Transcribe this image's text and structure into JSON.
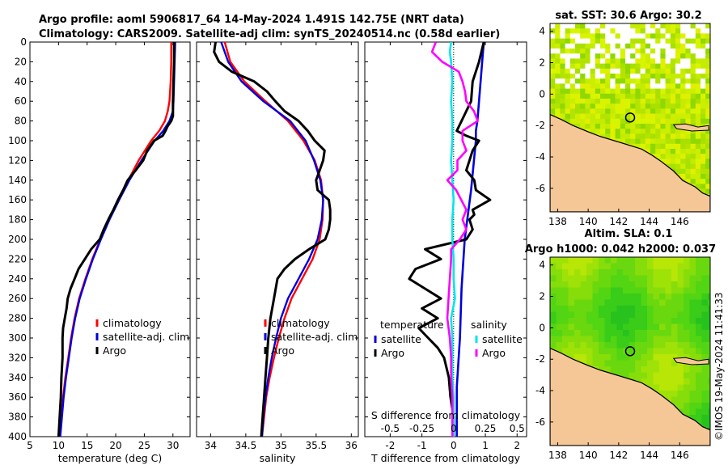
{
  "title": {
    "line1": "Argo profile: aoml 5906817_64 14-May-2024 1.491S 142.75E (NRT data)",
    "line2": "Climatology: CARS2009. Satellite-adj clim: synTS_20240514.nc (0.58d earlier)"
  },
  "watermark": "©IMOS 19-May-2024 11:41:33",
  "colors": {
    "climatology": "#ff0000",
    "satellite": "#0000dd",
    "argo": "#000000",
    "sal_diff": "#ff00ff",
    "sat_diff": "#00e5ee",
    "land": "#f6c796",
    "missing": "#ffffff"
  },
  "chart_data": [
    {
      "type": "line",
      "id": "temperature",
      "xlabel": "temperature (deg C)",
      "xlim": [
        5,
        33
      ],
      "xticks": [
        5,
        10,
        15,
        20,
        25,
        30
      ],
      "ylim": [
        0,
        400
      ],
      "yticks": [
        0,
        20,
        40,
        60,
        80,
        100,
        120,
        140,
        160,
        180,
        200,
        220,
        240,
        260,
        280,
        300,
        320,
        340,
        360,
        380,
        400
      ],
      "legend": [
        "climatology",
        "satellite-adj. clim",
        "Argo"
      ],
      "legend_position": "lower-right",
      "series": [
        {
          "name": "climatology",
          "depth": [
            0,
            20,
            40,
            60,
            70,
            80,
            90,
            100,
            120,
            140,
            160,
            180,
            200,
            220,
            240,
            260,
            280,
            300,
            320,
            340,
            360,
            380,
            400
          ],
          "values": [
            29.7,
            29.7,
            29.6,
            29.4,
            29.1,
            28.6,
            27.6,
            26.2,
            24.0,
            22.2,
            20.5,
            18.8,
            17.3,
            15.9,
            14.7,
            13.6,
            12.8,
            12.2,
            11.7,
            11.2,
            10.8,
            10.5,
            10.2
          ]
        },
        {
          "name": "satellite-adj. clim",
          "depth": [
            0,
            20,
            40,
            60,
            70,
            80,
            90,
            100,
            120,
            140,
            160,
            180,
            200,
            220,
            240,
            260,
            280,
            300,
            320,
            340,
            360,
            380,
            400
          ],
          "values": [
            30.4,
            30.3,
            30.2,
            30.1,
            30.0,
            29.4,
            28.3,
            26.8,
            24.5,
            22.4,
            20.6,
            18.9,
            17.4,
            16.0,
            14.8,
            13.7,
            12.9,
            12.3,
            11.8,
            11.3,
            10.9,
            10.6,
            10.3
          ]
        },
        {
          "name": "Argo",
          "depth": [
            0,
            10,
            20,
            40,
            60,
            75,
            80,
            85,
            90,
            95,
            100,
            110,
            120,
            130,
            140,
            150,
            160,
            170,
            180,
            190,
            200,
            210,
            220,
            230,
            240,
            250,
            260,
            270,
            280,
            290,
            300,
            320,
            340,
            360,
            380,
            400
          ],
          "values": [
            30.2,
            30.2,
            30.2,
            30.1,
            30.0,
            30.0,
            29.7,
            29.1,
            28.7,
            28.2,
            26.7,
            25.5,
            24.8,
            23.5,
            22.1,
            21.3,
            20.4,
            19.6,
            18.7,
            17.9,
            17.2,
            15.7,
            14.6,
            13.5,
            12.8,
            12.1,
            11.6,
            11.4,
            11.1,
            10.8,
            10.7,
            10.7,
            10.5,
            10.4,
            10.2,
            10.0
          ]
        }
      ]
    },
    {
      "type": "line",
      "id": "salinity",
      "xlabel": "salinity",
      "xlim": [
        33.8,
        36.1
      ],
      "xticks": [
        34,
        34.5,
        35,
        35.5,
        36
      ],
      "ylim": [
        0,
        400
      ],
      "legend": [
        "climatology",
        "satellite-adj. clim",
        "Argo"
      ],
      "legend_position": "lower-right",
      "series": [
        {
          "name": "climatology",
          "depth": [
            0,
            20,
            40,
            60,
            80,
            100,
            120,
            140,
            160,
            180,
            200,
            220,
            240,
            260,
            280,
            300,
            320,
            340,
            360,
            380,
            400
          ],
          "values": [
            34.2,
            34.28,
            34.48,
            34.78,
            35.1,
            35.32,
            35.48,
            35.57,
            35.6,
            35.59,
            35.55,
            35.45,
            35.3,
            35.15,
            35.05,
            34.97,
            34.9,
            34.84,
            34.79,
            34.76,
            34.73
          ]
        },
        {
          "name": "satellite-adj. clim",
          "depth": [
            0,
            20,
            40,
            60,
            80,
            100,
            120,
            140,
            160,
            180,
            200,
            220,
            240,
            260,
            280,
            300,
            320,
            340,
            360,
            380,
            400
          ],
          "values": [
            34.15,
            34.25,
            34.44,
            34.75,
            35.13,
            35.35,
            35.47,
            35.56,
            35.6,
            35.58,
            35.52,
            35.4,
            35.25,
            35.1,
            35.0,
            34.93,
            34.87,
            34.82,
            34.78,
            34.75,
            34.73
          ]
        },
        {
          "name": "Argo",
          "depth": [
            0,
            10,
            20,
            30,
            40,
            50,
            60,
            70,
            80,
            90,
            100,
            110,
            120,
            130,
            140,
            150,
            160,
            170,
            180,
            190,
            200,
            210,
            220,
            230,
            240,
            260,
            280,
            300,
            320,
            340,
            360,
            380,
            400
          ],
          "values": [
            34.07,
            34.05,
            34.12,
            34.3,
            34.62,
            34.8,
            34.92,
            35.05,
            35.25,
            35.38,
            35.48,
            35.62,
            35.6,
            35.55,
            35.5,
            35.52,
            35.68,
            35.7,
            35.7,
            35.68,
            35.63,
            35.4,
            35.2,
            35.05,
            34.95,
            34.9,
            34.85,
            34.82,
            34.8,
            34.78,
            34.76,
            34.74,
            34.72
          ]
        }
      ]
    },
    {
      "type": "line",
      "id": "differences",
      "xlabel": "T difference from climatology",
      "x2label": "S difference from climatology",
      "xlim": [
        -2.8,
        2.3
      ],
      "xticks": [
        -2,
        -1,
        0,
        1,
        2
      ],
      "x2ticks": [
        "-0.5",
        "-0.25",
        "0",
        "0.25",
        "0.5"
      ],
      "ylim": [
        0,
        400
      ],
      "legend_left_title": "temperature",
      "legend_right_title": "salinity",
      "legend_left": [
        "satellite",
        "Argo"
      ],
      "legend_right": [
        "satellite",
        "Argo"
      ],
      "series": [
        {
          "name": "temperature satellite",
          "depth": [
            0,
            20,
            60,
            80,
            90,
            100,
            150,
            200,
            250,
            300,
            350,
            400
          ],
          "values": [
            0.95,
            0.9,
            0.8,
            0.75,
            0.7,
            0.7,
            0.55,
            0.35,
            0.25,
            0.2,
            0.1,
            0.1
          ]
        },
        {
          "name": "temperature Argo",
          "depth": [
            0,
            20,
            40,
            60,
            70,
            80,
            90,
            95,
            100,
            110,
            120,
            130,
            140,
            150,
            160,
            170,
            175,
            180,
            190,
            200,
            210,
            220,
            230,
            240,
            250,
            260,
            270,
            280,
            290,
            300,
            310,
            320,
            340,
            360,
            380,
            400
          ],
          "values": [
            0.95,
            0.8,
            0.6,
            0.55,
            0.4,
            0.25,
            0.1,
            0.4,
            0.8,
            0.6,
            0.5,
            0.4,
            0.65,
            0.7,
            1.15,
            0.6,
            0.65,
            0.5,
            0.6,
            0.4,
            -0.9,
            -0.4,
            -1.2,
            -1.4,
            -0.9,
            -0.4,
            -1.0,
            -0.5,
            -1.1,
            -0.8,
            -0.5,
            -0.3,
            -0.15,
            -0.1,
            0.0,
            0.0
          ]
        },
        {
          "name": "salinity satellite",
          "depth": [
            0,
            10,
            20,
            40,
            60,
            80,
            100,
            120,
            140,
            160,
            180,
            200,
            220,
            240,
            260,
            280,
            300,
            320,
            340,
            360,
            380,
            400
          ],
          "values": [
            -0.02,
            -0.03,
            -0.02,
            -0.01,
            -0.02,
            -0.01,
            -0.01,
            -0.02,
            -0.01,
            0.0,
            -0.01,
            -0.01,
            0.0,
            0.0,
            0.01,
            -0.02,
            -0.01,
            -0.01,
            -0.01,
            0.0,
            0.0,
            0.0
          ]
        },
        {
          "name": "salinity Argo",
          "depth": [
            0,
            10,
            20,
            30,
            40,
            50,
            60,
            70,
            80,
            90,
            100,
            110,
            120,
            130,
            140,
            150,
            160,
            170,
            180,
            190,
            200,
            210,
            220,
            240,
            260,
            280,
            300,
            320,
            340,
            360,
            380,
            400
          ],
          "values": [
            -0.14,
            -0.17,
            -0.09,
            0.04,
            0.07,
            0.09,
            0.1,
            0.16,
            0.19,
            0.07,
            0.07,
            0.1,
            0.03,
            0.03,
            -0.05,
            0.02,
            0.06,
            0.1,
            0.07,
            0.1,
            0.05,
            -0.02,
            -0.02,
            -0.03,
            -0.04,
            -0.05,
            -0.03,
            -0.02,
            -0.02,
            -0.01,
            -0.01,
            -0.01
          ]
        }
      ]
    },
    {
      "type": "heatmap",
      "id": "sst_map",
      "title": "sat. SST: 30.6 Argo: 30.2",
      "xticks": [
        138,
        140,
        142,
        144,
        146
      ],
      "yticks": [
        4,
        2,
        0,
        -2,
        -4,
        -6
      ],
      "xlim": [
        137.5,
        148
      ],
      "ylim": [
        -7.5,
        4.5
      ],
      "argo_position": [
        142.75,
        -1.491
      ]
    },
    {
      "type": "heatmap",
      "id": "sla_map",
      "title_line1": "Altim. SLA: 0.1",
      "title_line2": "Argo h1000: 0.042 h2000: 0.037",
      "xticks": [
        138,
        140,
        142,
        144,
        146
      ],
      "yticks": [
        4,
        2,
        0,
        -2,
        -4,
        -6
      ],
      "xlim": [
        137.5,
        148
      ],
      "ylim": [
        -7.5,
        4.5
      ],
      "argo_position": [
        142.75,
        -1.491
      ]
    }
  ]
}
